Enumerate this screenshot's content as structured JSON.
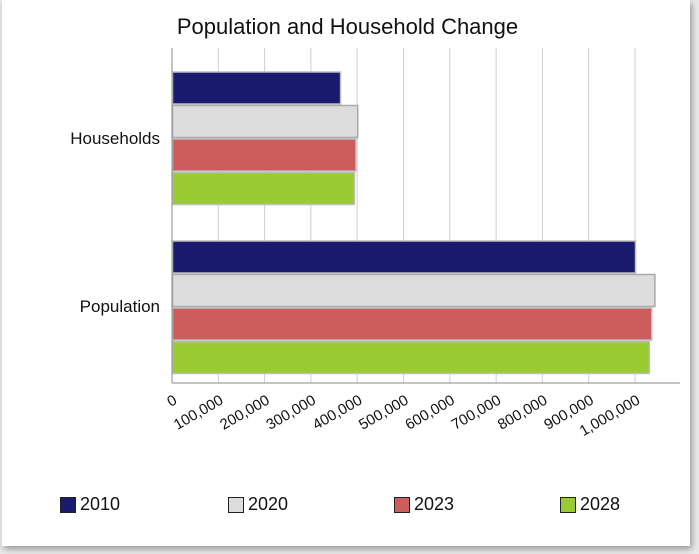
{
  "chart_data": {
    "type": "bar",
    "orientation": "horizontal",
    "title": "Population and Household Change",
    "categories": [
      "Households",
      "Population"
    ],
    "series": [
      {
        "name": "2010",
        "color": "#1a1a6e",
        "values": [
          363000,
          1000000
        ]
      },
      {
        "name": "2020",
        "color": "#dcdcdc",
        "values": [
          400000,
          1042000
        ]
      },
      {
        "name": "2023",
        "color": "#cd5c5c",
        "values": [
          396000,
          1035000
        ]
      },
      {
        "name": "2028",
        "color": "#99cc33",
        "values": [
          393000,
          1030000
        ]
      }
    ],
    "x_ticks": [
      "0",
      "100,000",
      "200,000",
      "300,000",
      "400,000",
      "500,000",
      "600,000",
      "700,000",
      "800,000",
      "900,000",
      "1,000,000"
    ],
    "xlim": [
      0,
      1000000
    ],
    "grid": true,
    "legend_position": "bottom"
  }
}
